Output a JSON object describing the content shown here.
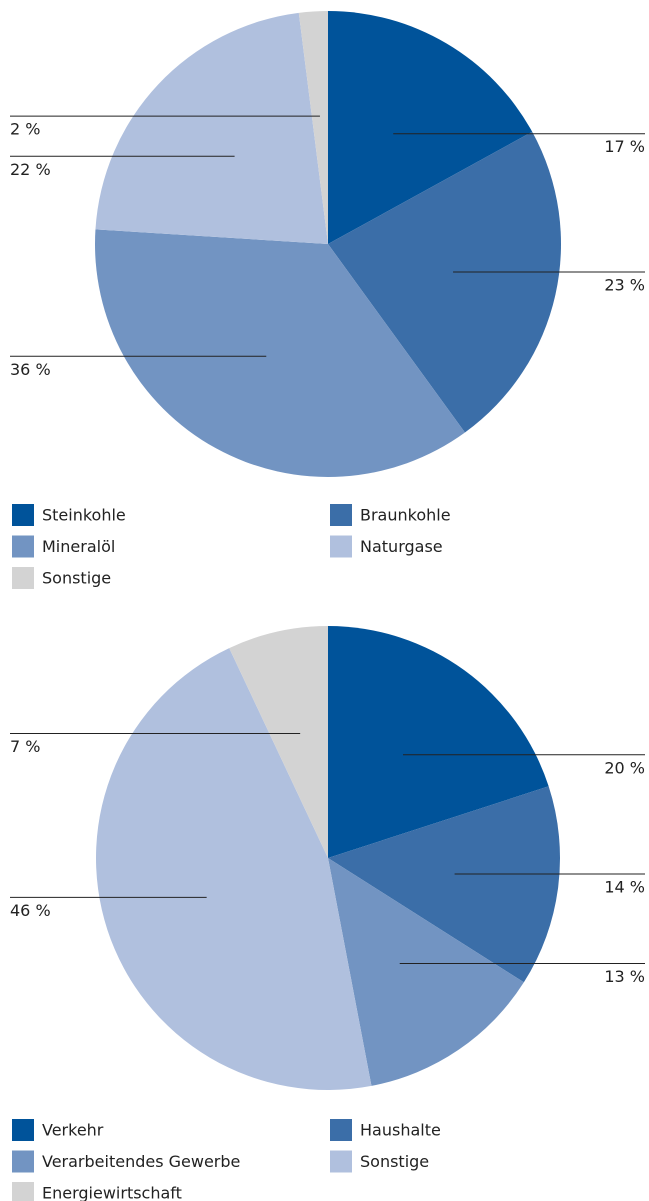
{
  "chart_data": [
    {
      "type": "pie",
      "categories": [
        "Steinkohle",
        "Braunkohle",
        "Mineralöl",
        "Naturgase",
        "Sonstige"
      ],
      "values": [
        17,
        23,
        36,
        22,
        2
      ],
      "value_labels": [
        "17 %",
        "23 %",
        "36 %",
        "22 %",
        "2 %"
      ],
      "colors": [
        "#00539a",
        "#3b6ea8",
        "#7294c2",
        "#b0c0de",
        "#d3d3d3"
      ]
    },
    {
      "type": "pie",
      "categories": [
        "Verkehr",
        "Haushalte",
        "Verarbeitendes Gewerbe",
        "Sonstige",
        "Energiewirtschaft"
      ],
      "values": [
        20,
        14,
        13,
        46,
        7
      ],
      "value_labels": [
        "20 %",
        "14 %",
        "13 %",
        "46 %",
        "7 %"
      ],
      "colors": [
        "#00539a",
        "#3b6ea8",
        "#7294c2",
        "#b0c0de",
        "#d3d3d3"
      ]
    }
  ]
}
